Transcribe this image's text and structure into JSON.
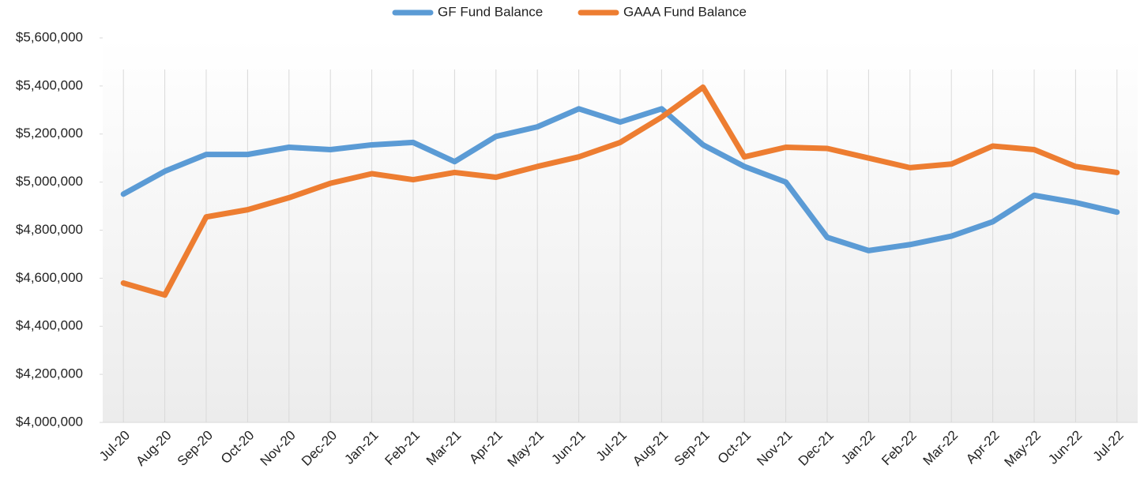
{
  "chart_data": {
    "type": "line",
    "categories": [
      "Jul-20",
      "Aug-20",
      "Sep-20",
      "Oct-20",
      "Nov-20",
      "Dec-20",
      "Jan-21",
      "Feb-21",
      "Mar-21",
      "Apr-21",
      "May-21",
      "Jun-21",
      "Jul-21",
      "Aug-21",
      "Sep-21",
      "Oct-21",
      "Nov-21",
      "Dec-21",
      "Jan-22",
      "Feb-22",
      "Mar-22",
      "Apr-22",
      "May-22",
      "Jun-22",
      "Jul-22"
    ],
    "series": [
      {
        "name": "GF Fund Balance",
        "color": "#5b9bd5",
        "values": [
          4950000,
          5045000,
          5115000,
          5115000,
          5145000,
          5135000,
          5155000,
          5165000,
          5085000,
          5190000,
          5230000,
          5305000,
          5250000,
          5305000,
          5155000,
          5065000,
          5000000,
          4770000,
          4715000,
          4740000,
          4775000,
          4835000,
          4945000,
          4915000,
          4875000
        ]
      },
      {
        "name": "GAAA Fund Balance",
        "color": "#ed7d31",
        "values": [
          4580000,
          4530000,
          4855000,
          4885000,
          4935000,
          4995000,
          5035000,
          5010000,
          5040000,
          5020000,
          5065000,
          5105000,
          5165000,
          5270000,
          5395000,
          5105000,
          5145000,
          5140000,
          5100000,
          5060000,
          5075000,
          5150000,
          5135000,
          5065000,
          5040000
        ]
      }
    ],
    "ylim": [
      4000000,
      5600000
    ],
    "yticks": [
      {
        "value": 4000000,
        "label": "$4,000,000"
      },
      {
        "value": 4200000,
        "label": "$4,200,000"
      },
      {
        "value": 4400000,
        "label": "$4,400,000"
      },
      {
        "value": 4600000,
        "label": "$4,600,000"
      },
      {
        "value": 4800000,
        "label": "$4,800,000"
      },
      {
        "value": 5000000,
        "label": "$5,000,000"
      },
      {
        "value": 5200000,
        "label": "$5,200,000"
      },
      {
        "value": 5400000,
        "label": "$5,400,000"
      },
      {
        "value": 5600000,
        "label": "$5,600,000"
      }
    ],
    "legend": "top",
    "grid": "vertical"
  }
}
